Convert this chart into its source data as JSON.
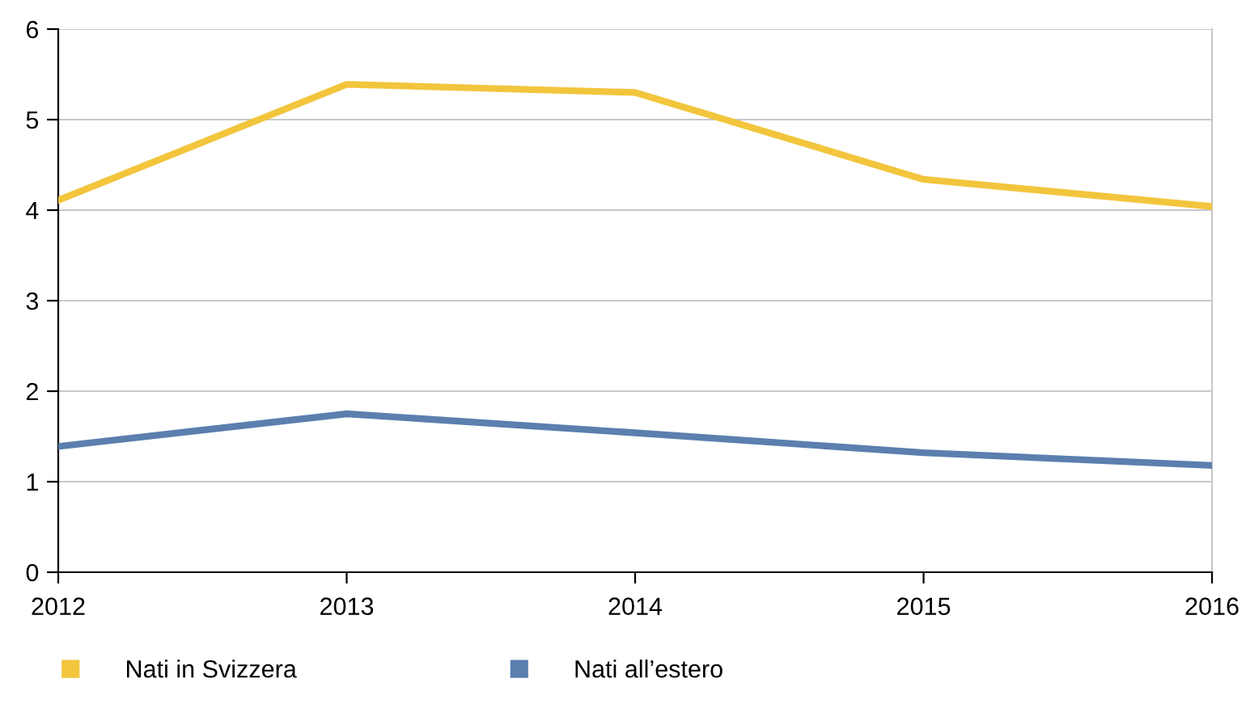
{
  "chart_data": {
    "type": "line",
    "x": [
      2012,
      2013,
      2014,
      2015,
      2016
    ],
    "series": [
      {
        "name": "Nati in Svizzera",
        "color": "#f2c53d",
        "values": [
          4.11,
          5.39,
          5.3,
          4.34,
          4.04
        ]
      },
      {
        "name": "Nati all’estero",
        "color": "#5b7fae",
        "values": [
          1.39,
          1.75,
          1.54,
          1.32,
          1.18
        ]
      }
    ],
    "xlim": [
      2012,
      2016
    ],
    "xticks": [
      2012,
      2013,
      2014,
      2015,
      2016
    ],
    "ylim": [
      0,
      6
    ],
    "yticks": [
      0,
      1,
      2,
      3,
      4,
      5,
      6
    ],
    "grid": "y",
    "legend": "bottom",
    "marker": "none",
    "line_style": "solid"
  }
}
